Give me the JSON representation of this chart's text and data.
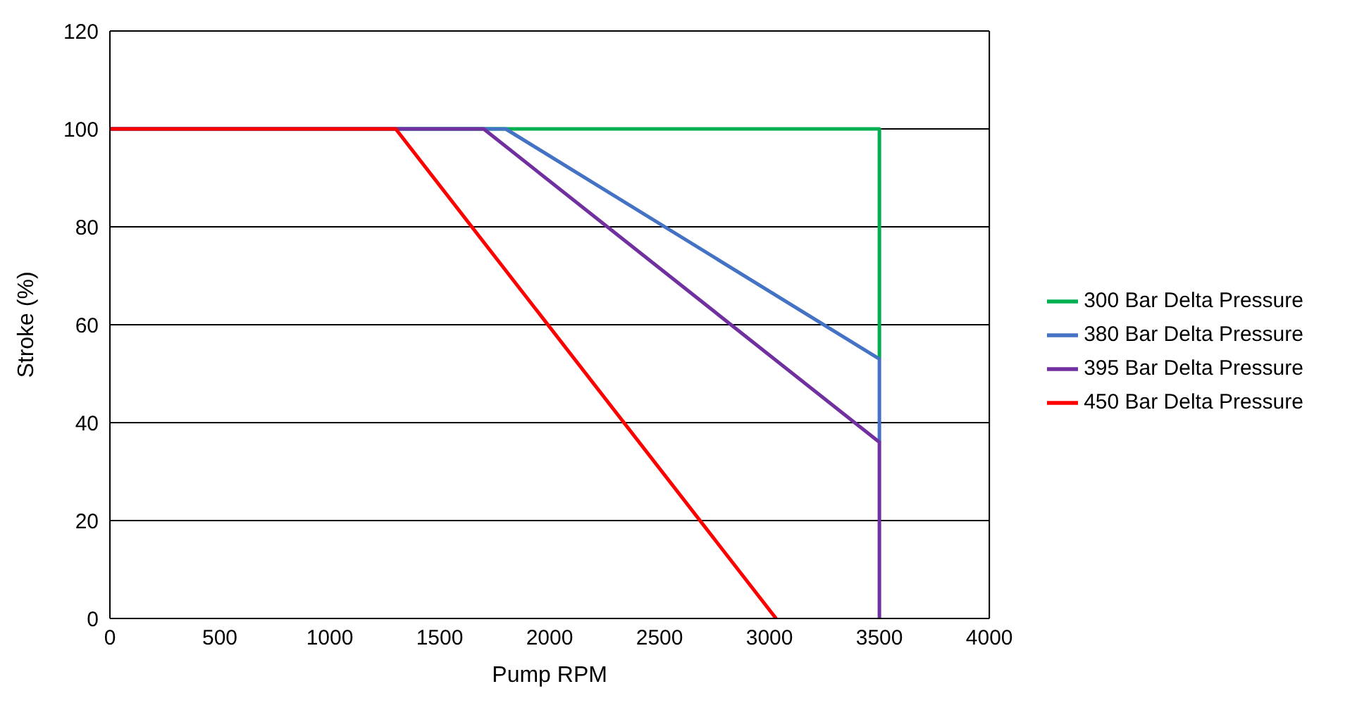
{
  "chart_data": {
    "type": "line",
    "xlabel": "Pump RPM",
    "ylabel": "Stroke (%)",
    "xlim": [
      0,
      4000
    ],
    "xticks": [
      0,
      500,
      1000,
      1500,
      2000,
      2500,
      3000,
      3500,
      4000
    ],
    "ylim": [
      0,
      120
    ],
    "yticks": [
      0,
      20,
      40,
      60,
      80,
      100,
      120
    ],
    "grid": "y",
    "legend": "right",
    "marker": "none",
    "line_style": "solid",
    "series": [
      {
        "name": "300 Bar Delta Pressure",
        "color": "#00b050",
        "x": [
          0,
          3500,
          3500
        ],
        "values": [
          100,
          100,
          53
        ]
      },
      {
        "name": "380 Bar Delta Pressure",
        "color": "#4472c4",
        "x": [
          0,
          1800,
          3500,
          3500
        ],
        "values": [
          100,
          100,
          53,
          36
        ]
      },
      {
        "name": "395 Bar Delta Pressure",
        "color": "#7030a0",
        "x": [
          0,
          1700,
          3500,
          3500
        ],
        "values": [
          100,
          100,
          36,
          0
        ]
      },
      {
        "name": "450 Bar Delta Pressure",
        "color": "#ff0000",
        "x": [
          0,
          1300,
          3030
        ],
        "values": [
          100,
          100,
          0
        ]
      }
    ]
  }
}
